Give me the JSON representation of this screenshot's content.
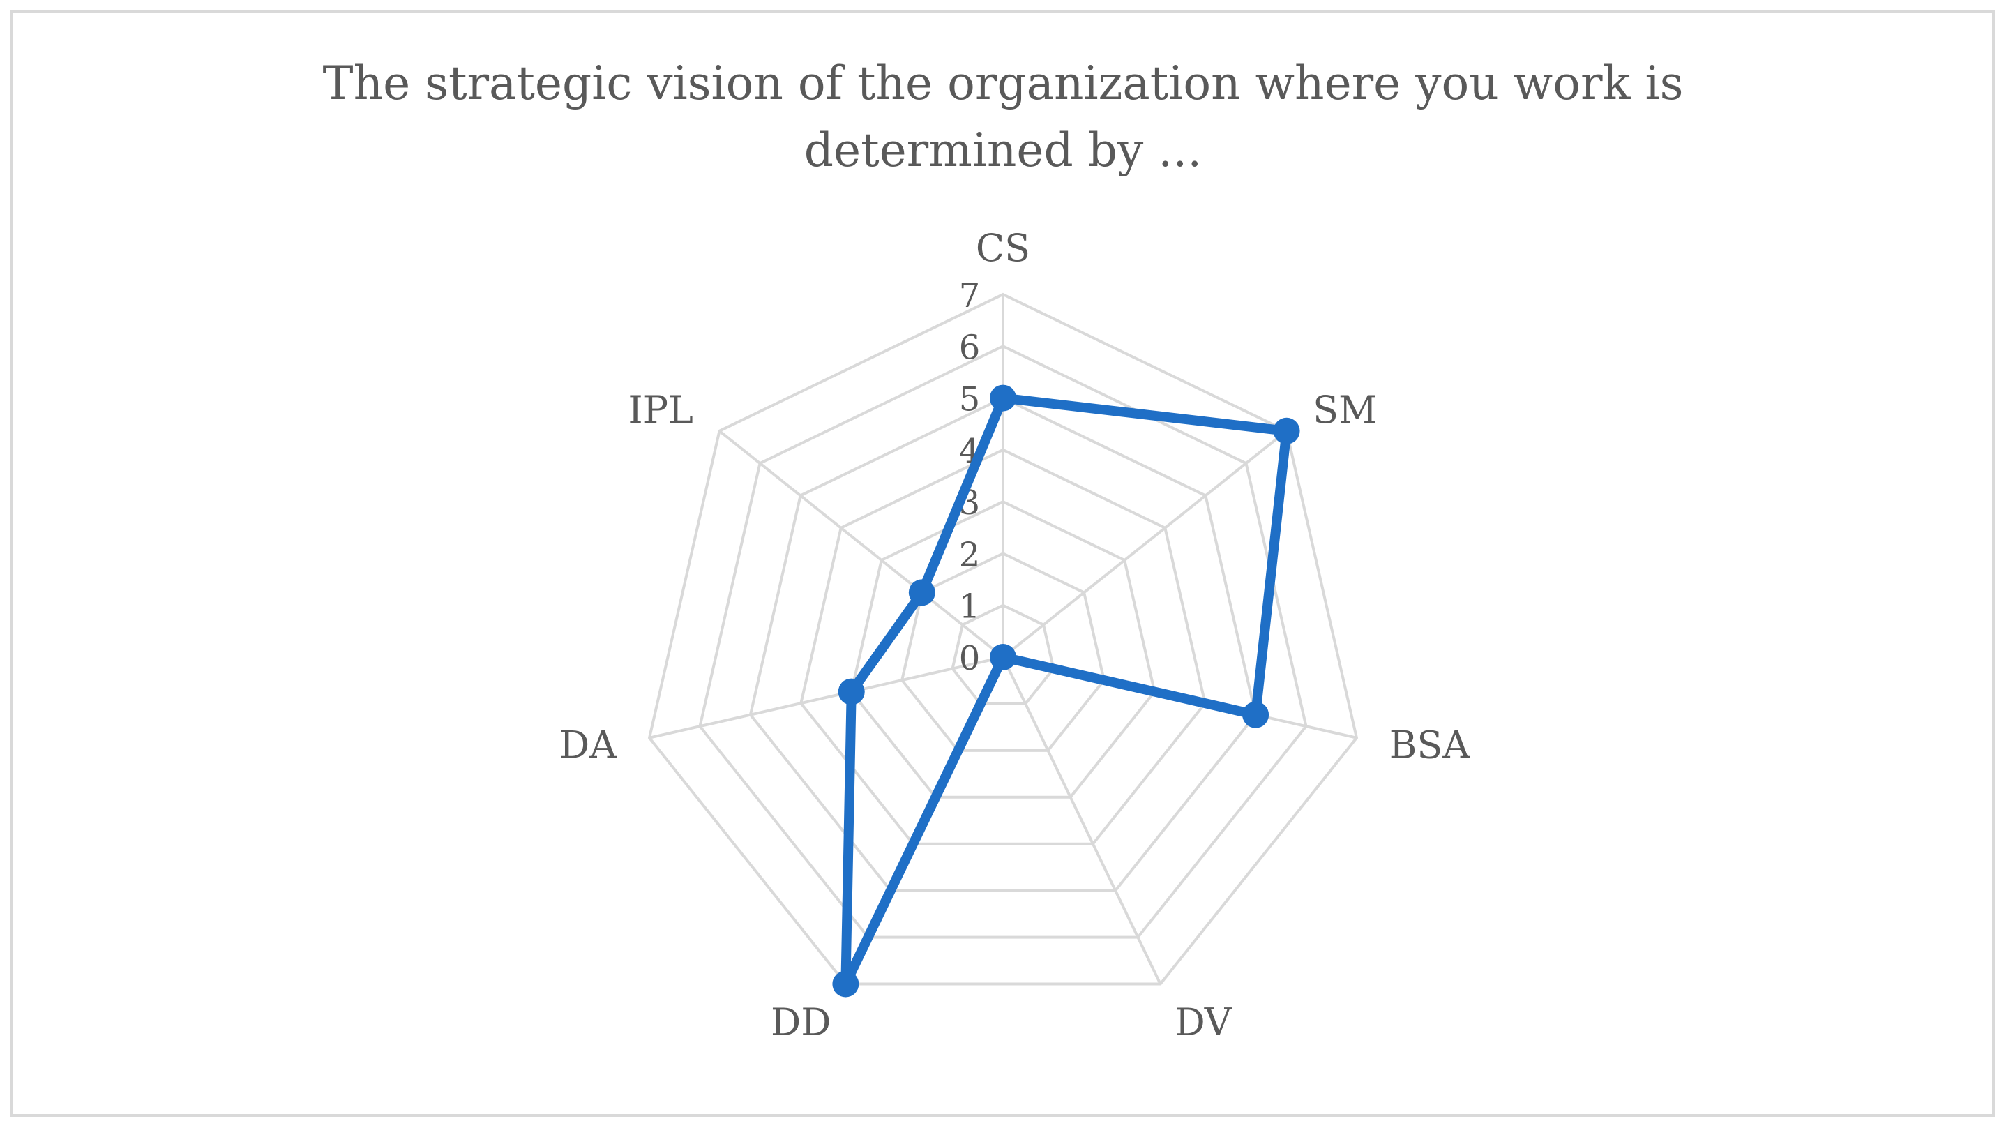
{
  "chart_data": {
    "type": "radar",
    "title_line1": "The strategic vision of the organization where you work is",
    "title_line2": "determined by ...",
    "categories": [
      "CS",
      "SM",
      "BSA",
      "DV",
      "DD",
      "DA",
      "IPL"
    ],
    "values": [
      5,
      7,
      5,
      0,
      7,
      3,
      2
    ],
    "rlim": [
      0,
      7
    ],
    "ticks": [
      "0",
      "1",
      "2",
      "3",
      "4",
      "5",
      "6",
      "7"
    ],
    "grid": true,
    "legend": "none",
    "series_color": "#1f6fc6",
    "grid_color": "#d9d9d9"
  }
}
